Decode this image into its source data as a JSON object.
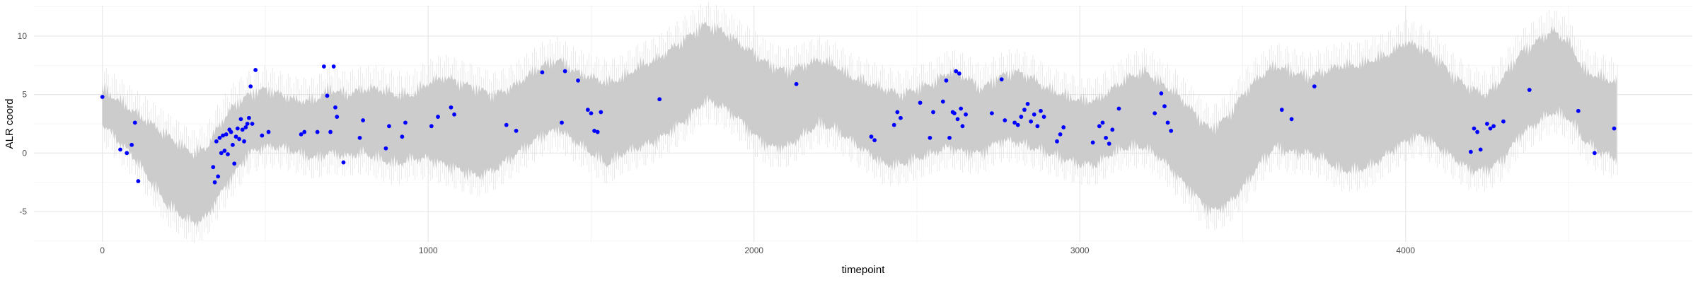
{
  "chart_data": {
    "type": "scatter",
    "title": "",
    "xlabel": "timepoint",
    "ylabel": "ALR coord",
    "xlim": [
      -210,
      4880
    ],
    "ylim": [
      -7.6,
      12.6
    ],
    "x_ticks": [
      0,
      1000,
      2000,
      3000,
      4000
    ],
    "x_tick_labels": [
      "0",
      "1000",
      "2000",
      "3000",
      "4000"
    ],
    "y_ticks": [
      -5,
      0,
      5,
      10
    ],
    "y_tick_labels": [
      "-5",
      "0",
      "5",
      "10"
    ],
    "grid": true,
    "theme": "minimal",
    "colors": {
      "band": "#cccccc",
      "band_noise": "#dcdcdc",
      "points": "#0000ff"
    },
    "band": {
      "description_value": "posterior interval",
      "x": [
        0,
        100,
        150,
        200,
        250,
        280,
        320,
        350,
        400,
        450,
        500,
        550,
        600,
        650,
        700,
        750,
        800,
        850,
        900,
        950,
        1000,
        1050,
        1100,
        1150,
        1200,
        1250,
        1300,
        1350,
        1400,
        1450,
        1500,
        1550,
        1600,
        1650,
        1700,
        1750,
        1800,
        1850,
        1900,
        1950,
        2000,
        2050,
        2100,
        2150,
        2200,
        2250,
        2300,
        2350,
        2400,
        2450,
        2500,
        2550,
        2600,
        2650,
        2700,
        2750,
        2800,
        2850,
        2900,
        2950,
        3000,
        3050,
        3100,
        3150,
        3200,
        3250,
        3300,
        3350,
        3400,
        3450,
        3500,
        3550,
        3600,
        3650,
        3700,
        3750,
        3800,
        3850,
        3900,
        3950,
        4000,
        4050,
        4100,
        4150,
        4200,
        4250,
        4300,
        4350,
        4400,
        4450,
        4500,
        4550,
        4600,
        4650
      ],
      "lower": [
        2.5,
        -0.5,
        -2.5,
        -4.5,
        -5.5,
        -6.0,
        -5.5,
        -4.0,
        -2.0,
        0.0,
        0.5,
        0.5,
        0.0,
        -0.5,
        0.0,
        -0.3,
        0.0,
        -0.5,
        -1.0,
        -0.5,
        -0.5,
        -1.0,
        -1.5,
        -2.0,
        -1.5,
        -0.5,
        0.5,
        1.5,
        2.0,
        1.0,
        0.0,
        -1.0,
        0.0,
        0.5,
        1.0,
        2.0,
        3.0,
        4.5,
        4.0,
        3.0,
        1.5,
        0.5,
        0.5,
        1.5,
        2.5,
        2.0,
        1.0,
        0.0,
        -1.0,
        -1.0,
        -0.5,
        0.0,
        0.5,
        0.0,
        0.0,
        1.0,
        1.0,
        0.5,
        0.0,
        -0.5,
        -1.0,
        -1.0,
        0.0,
        0.5,
        0.5,
        -0.5,
        -2.0,
        -3.5,
        -5.0,
        -4.5,
        -3.0,
        -1.0,
        0.5,
        0.0,
        0.0,
        -0.5,
        -1.5,
        -1.5,
        -1.0,
        0.0,
        1.0,
        1.5,
        0.5,
        -0.5,
        -1.5,
        -1.5,
        -0.5,
        1.5,
        2.5,
        3.5,
        3.0,
        1.0,
        0.0,
        -0.5
      ],
      "upper": [
        5.5,
        3.5,
        2.5,
        1.5,
        0.5,
        0.0,
        0.5,
        2.0,
        4.0,
        5.0,
        5.5,
        5.0,
        4.5,
        4.5,
        5.5,
        5.0,
        5.5,
        5.5,
        5.0,
        5.0,
        6.0,
        6.5,
        6.0,
        5.5,
        5.0,
        5.5,
        6.5,
        7.5,
        8.0,
        7.0,
        6.5,
        6.0,
        6.5,
        7.5,
        8.0,
        9.0,
        10.0,
        11.0,
        10.5,
        9.5,
        8.5,
        7.5,
        7.0,
        7.5,
        8.0,
        7.5,
        6.5,
        6.0,
        5.5,
        5.0,
        5.5,
        6.0,
        7.0,
        6.5,
        5.5,
        6.5,
        7.0,
        6.5,
        5.5,
        5.0,
        4.5,
        4.5,
        5.5,
        6.5,
        7.0,
        6.0,
        5.0,
        3.5,
        2.0,
        3.0,
        5.0,
        6.5,
        7.5,
        7.0,
        6.5,
        7.0,
        7.5,
        7.5,
        8.0,
        8.5,
        9.5,
        9.0,
        8.0,
        6.5,
        5.5,
        5.0,
        6.5,
        8.5,
        9.5,
        10.5,
        9.5,
        7.0,
        6.5,
        6.0
      ]
    },
    "series": [
      {
        "x": [
          0,
          55,
          75,
          90,
          100,
          110,
          340,
          345,
          350,
          355,
          360,
          365,
          370,
          375,
          380,
          385,
          390,
          395,
          400,
          405,
          410,
          415,
          420,
          425,
          430,
          435,
          440,
          445,
          450,
          455,
          460,
          470,
          490,
          510,
          610,
          620,
          660,
          680,
          690,
          700,
          710,
          715,
          720,
          740,
          790,
          800,
          870,
          880,
          920,
          930,
          1010,
          1030,
          1070,
          1080,
          1240,
          1270,
          1350,
          1410,
          1420,
          1460,
          1490,
          1500,
          1510,
          1520,
          1530,
          1710,
          2130,
          2360,
          2370,
          2430,
          2440,
          2450,
          2510,
          2540,
          2550,
          2580,
          2590,
          2600,
          2610,
          2615,
          2620,
          2625,
          2630,
          2635,
          2640,
          2650,
          2730,
          2760,
          2770,
          2800,
          2810,
          2820,
          2830,
          2840,
          2850,
          2860,
          2870,
          2880,
          2890,
          2930,
          2940,
          2950,
          3040,
          3060,
          3070,
          3080,
          3090,
          3100,
          3120,
          3230,
          3250,
          3260,
          3270,
          3280,
          3620,
          3650,
          3720,
          4200,
          4210,
          4220,
          4230,
          4250,
          4260,
          4270,
          4300,
          4380,
          4530,
          4580,
          4640
        ],
        "y": [
          4.8,
          0.3,
          0.0,
          0.7,
          2.6,
          -2.4,
          -1.2,
          -2.5,
          1.0,
          -2.0,
          1.3,
          0.0,
          1.5,
          0.2,
          1.6,
          -0.1,
          2.0,
          1.8,
          0.7,
          -0.9,
          1.4,
          2.1,
          1.2,
          2.9,
          2.0,
          1.0,
          2.2,
          2.5,
          3.0,
          5.7,
          2.5,
          7.1,
          1.5,
          1.8,
          1.6,
          1.8,
          1.8,
          7.4,
          4.9,
          1.8,
          7.4,
          3.9,
          3.1,
          -0.8,
          1.3,
          2.8,
          0.4,
          2.3,
          1.4,
          2.6,
          2.3,
          3.1,
          3.9,
          3.3,
          2.4,
          1.9,
          6.9,
          2.6,
          7.0,
          6.2,
          3.7,
          3.4,
          1.9,
          1.8,
          3.5,
          4.6,
          5.9,
          1.4,
          1.1,
          2.4,
          3.5,
          3.0,
          4.3,
          1.3,
          3.5,
          4.4,
          6.2,
          1.3,
          3.5,
          3.4,
          7.0,
          2.9,
          6.8,
          3.8,
          2.3,
          3.3,
          3.4,
          6.3,
          2.8,
          2.6,
          2.4,
          3.1,
          3.7,
          4.2,
          2.7,
          3.3,
          2.3,
          3.6,
          3.1,
          1.0,
          1.6,
          2.2,
          0.9,
          2.3,
          2.6,
          1.3,
          0.8,
          2.0,
          3.8,
          3.4,
          5.1,
          4.0,
          2.6,
          1.9,
          3.7,
          2.9,
          5.7,
          0.1,
          2.1,
          1.8,
          0.3,
          2.5,
          2.1,
          2.3,
          2.7,
          5.4,
          3.6,
          0.0,
          2.1
        ]
      }
    ]
  }
}
